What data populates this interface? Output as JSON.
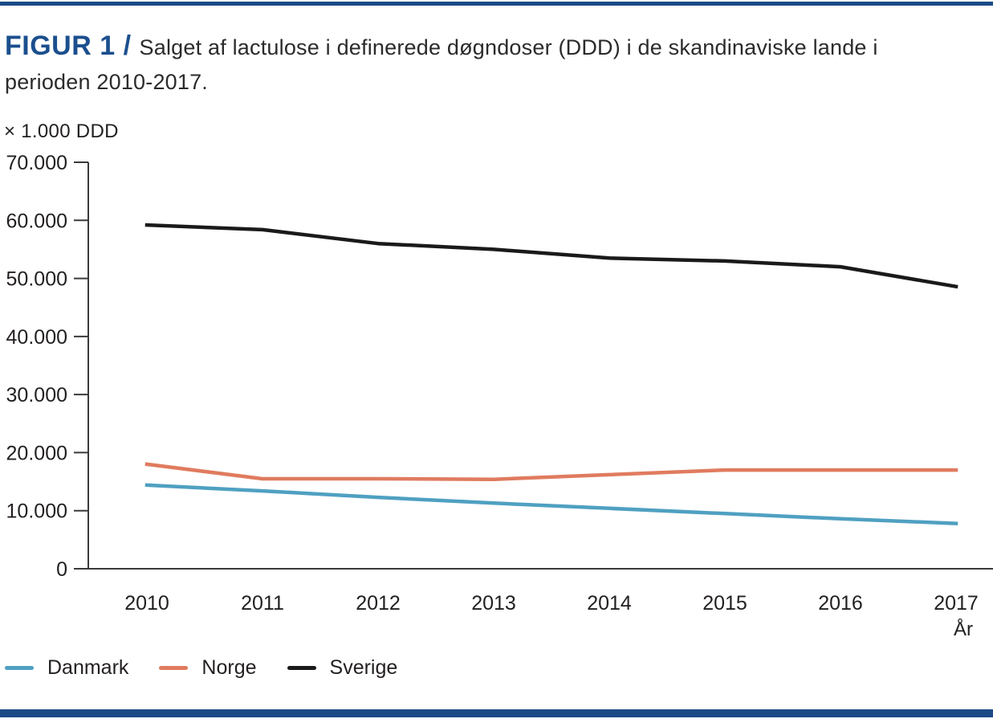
{
  "header": {
    "figure_label": "FIGUR 1 /",
    "title_line1": "Salget af lactulose i definerede døgndoser (DDD) i de skandinaviske lande i",
    "title_line2": "perioden 2010-2017."
  },
  "colors": {
    "accent_bar": "#1b4a87",
    "figure_label_blue": "#1b4f8e",
    "danmark_line": "#4fa0c1",
    "norge_line": "#e07b5f",
    "sverige_line": "#1a1a1a",
    "axis_text": "#231f20"
  },
  "chart_data": {
    "type": "line",
    "title": "Salget af lactulose i definerede døgndoser (DDD) i de skandinaviske lande i perioden 2010-2017.",
    "unit_label": "× 1.000 DDD",
    "xlabel": "År",
    "x": [
      2010,
      2011,
      2012,
      2013,
      2014,
      2015,
      2016,
      2017
    ],
    "y_ticks": [
      "70.000",
      "60.000",
      "50.000",
      "40.000",
      "30.000",
      "20.000",
      "10.000",
      "0"
    ],
    "ylim": [
      0,
      70000
    ],
    "grid": false,
    "legend_position": "bottom-left",
    "series": [
      {
        "name": "Danmark",
        "color": "#4fa0c1",
        "values": [
          14400,
          13400,
          12300,
          11300,
          10400,
          9500,
          8600,
          7800
        ]
      },
      {
        "name": "Norge",
        "color": "#e07b5f",
        "values": [
          18000,
          15500,
          15500,
          15400,
          16200,
          17000,
          17000,
          17000
        ]
      },
      {
        "name": "Sverige",
        "color": "#1a1a1a",
        "values": [
          59200,
          58400,
          56000,
          55000,
          53500,
          53000,
          52000,
          48600
        ]
      }
    ]
  }
}
